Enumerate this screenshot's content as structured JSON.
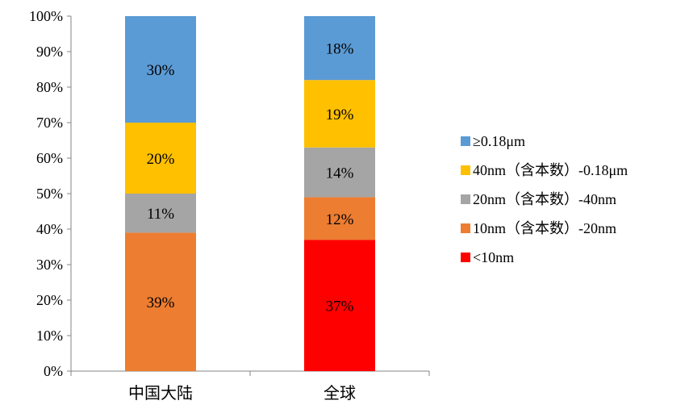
{
  "chart_data": {
    "type": "bar",
    "stacked": true,
    "categories": [
      "中国大陆",
      "全球"
    ],
    "ylim": [
      0,
      100
    ],
    "yticks": [
      "0%",
      "10%",
      "20%",
      "30%",
      "40%",
      "50%",
      "60%",
      "70%",
      "80%",
      "90%",
      "100%"
    ],
    "grid": false,
    "legend_position": "right",
    "series": [
      {
        "name": "<10nm",
        "values": [
          0,
          37
        ],
        "labels": [
          "",
          "37%"
        ],
        "color": "#ff0000"
      },
      {
        "name": "10nm（含本数）-20nm",
        "values": [
          39,
          12
        ],
        "labels": [
          "39%",
          "12%"
        ],
        "color": "#ed7d31"
      },
      {
        "name": "20nm（含本数）-40nm",
        "values": [
          11,
          14
        ],
        "labels": [
          "11%",
          "14%"
        ],
        "color": "#a5a5a5"
      },
      {
        "name": "40nm（含本数）-0.18μm",
        "values": [
          20,
          19
        ],
        "labels": [
          "20%",
          "19%"
        ],
        "color": "#ffc000"
      },
      {
        "name": "≥0.18μm",
        "values": [
          30,
          18
        ],
        "labels": [
          "30%",
          "18%"
        ],
        "color": "#5b9bd5"
      }
    ]
  }
}
